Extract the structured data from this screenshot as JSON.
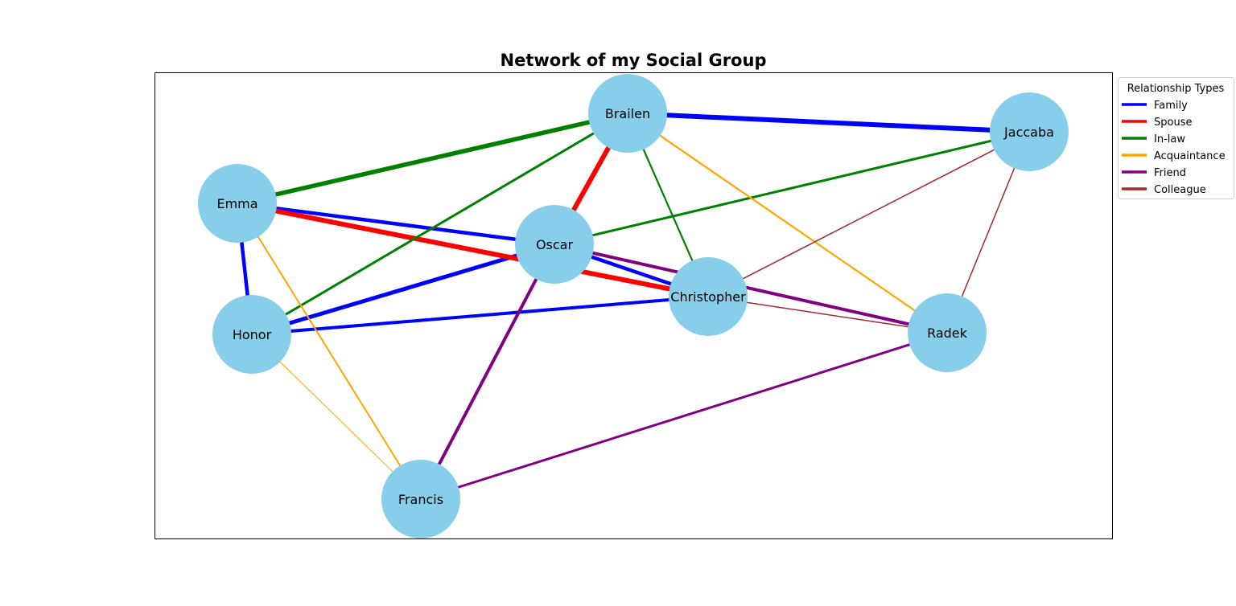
{
  "title": "Network of my Social Group",
  "legend": {
    "title": "Relationship Types",
    "placement": "outside-top-right",
    "items": [
      {
        "label": "Family",
        "color": "#0000ff"
      },
      {
        "label": "Spouse",
        "color": "#ff0000"
      },
      {
        "label": "In-law",
        "color": "#008000"
      },
      {
        "label": "Acquaintance",
        "color": "#ffa500"
      },
      {
        "label": "Friend",
        "color": "#800080"
      },
      {
        "label": "Colleague",
        "color": "#a52a2a"
      }
    ]
  },
  "node_color": "#87ceeb",
  "nodes": [
    {
      "id": "Brailen",
      "label": "Brailen"
    },
    {
      "id": "Jaccaba",
      "label": "Jaccaba"
    },
    {
      "id": "Emma",
      "label": "Emma"
    },
    {
      "id": "Oscar",
      "label": "Oscar"
    },
    {
      "id": "Christopher",
      "label": "Christopher"
    },
    {
      "id": "Honor",
      "label": "Honor"
    },
    {
      "id": "Radek",
      "label": "Radek"
    },
    {
      "id": "Francis",
      "label": "Francis"
    }
  ],
  "edges": [
    {
      "source": "Brailen",
      "target": "Jaccaba",
      "type": "Family"
    },
    {
      "source": "Emma",
      "target": "Oscar",
      "type": "Family"
    },
    {
      "source": "Emma",
      "target": "Honor",
      "type": "Family"
    },
    {
      "source": "Oscar",
      "target": "Honor",
      "type": "Family"
    },
    {
      "source": "Oscar",
      "target": "Christopher",
      "type": "Family"
    },
    {
      "source": "Honor",
      "target": "Christopher",
      "type": "Family"
    },
    {
      "source": "Brailen",
      "target": "Oscar",
      "type": "Spouse"
    },
    {
      "source": "Emma",
      "target": "Christopher",
      "type": "Spouse"
    },
    {
      "source": "Brailen",
      "target": "Emma",
      "type": "In-law"
    },
    {
      "source": "Brailen",
      "target": "Honor",
      "type": "In-law"
    },
    {
      "source": "Brailen",
      "target": "Christopher",
      "type": "In-law"
    },
    {
      "source": "Jaccaba",
      "target": "Oscar",
      "type": "In-law"
    },
    {
      "source": "Brailen",
      "target": "Radek",
      "type": "Acquaintance"
    },
    {
      "source": "Emma",
      "target": "Francis",
      "type": "Acquaintance"
    },
    {
      "source": "Honor",
      "target": "Francis",
      "type": "Acquaintance"
    },
    {
      "source": "Oscar",
      "target": "Radek",
      "type": "Friend"
    },
    {
      "source": "Oscar",
      "target": "Francis",
      "type": "Friend"
    },
    {
      "source": "Francis",
      "target": "Radek",
      "type": "Friend"
    },
    {
      "source": "Jaccaba",
      "target": "Christopher",
      "type": "Colleague"
    },
    {
      "source": "Jaccaba",
      "target": "Radek",
      "type": "Colleague"
    },
    {
      "source": "Christopher",
      "target": "Radek",
      "type": "Colleague"
    }
  ]
}
